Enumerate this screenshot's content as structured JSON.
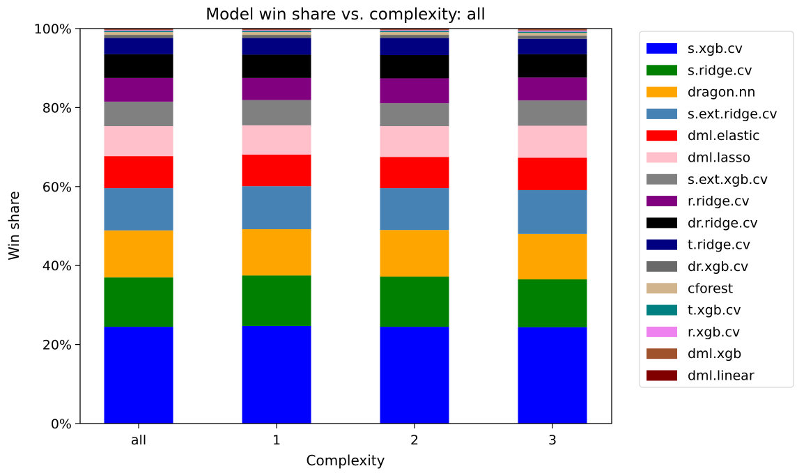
{
  "chart_data": {
    "type": "bar",
    "stacked": true,
    "title": "Model win share vs. complexity: all",
    "xlabel": "Complexity",
    "ylabel": "Win share",
    "ylim": [
      0,
      100
    ],
    "yticks": [
      "0%",
      "20%",
      "40%",
      "60%",
      "80%",
      "100%"
    ],
    "ytick_values": [
      0,
      20,
      40,
      60,
      80,
      100
    ],
    "categories": [
      "all",
      "1",
      "2",
      "3"
    ],
    "grid": false,
    "legend_placement": "outside-right",
    "series": [
      {
        "name": "s.xgb.cv",
        "color": "#0000ff",
        "values": [
          24.5,
          24.7,
          24.5,
          24.4
        ]
      },
      {
        "name": "s.ridge.cv",
        "color": "#008000",
        "values": [
          12.5,
          12.8,
          12.7,
          12.1
        ]
      },
      {
        "name": "dragon.nn",
        "color": "#ffa500",
        "values": [
          11.9,
          11.7,
          11.8,
          11.5
        ]
      },
      {
        "name": "s.ext.ridge.cv",
        "color": "#4682b4",
        "values": [
          10.7,
          10.9,
          10.6,
          11.1
        ]
      },
      {
        "name": "dml.elastic",
        "color": "#ff0000",
        "values": [
          8.1,
          8.0,
          7.9,
          8.2
        ]
      },
      {
        "name": "dml.lasso",
        "color": "#ffc0cb",
        "values": [
          7.6,
          7.4,
          7.8,
          8.1
        ]
      },
      {
        "name": "s.ext.xgb.cv",
        "color": "#808080",
        "values": [
          6.2,
          6.4,
          5.8,
          6.4
        ]
      },
      {
        "name": "r.ridge.cv",
        "color": "#800080",
        "values": [
          6.0,
          5.6,
          6.3,
          5.8
        ]
      },
      {
        "name": "dr.ridge.cv",
        "color": "#000000",
        "values": [
          6.0,
          5.9,
          5.9,
          5.9
        ]
      },
      {
        "name": "t.ridge.cv",
        "color": "#000080",
        "values": [
          4.1,
          4.2,
          4.3,
          3.9
        ]
      },
      {
        "name": "dr.xgb.cv",
        "color": "#696969",
        "values": [
          0.8,
          0.8,
          0.8,
          0.8
        ]
      },
      {
        "name": "cforest",
        "color": "#d2b48c",
        "values": [
          0.7,
          0.7,
          0.7,
          0.7
        ]
      },
      {
        "name": "t.xgb.cv",
        "color": "#008080",
        "values": [
          0.3,
          0.3,
          0.3,
          0.3
        ]
      },
      {
        "name": "r.xgb.cv",
        "color": "#ee82ee",
        "values": [
          0.2,
          0.2,
          0.2,
          0.3
        ]
      },
      {
        "name": "dml.xgb",
        "color": "#a0522d",
        "values": [
          0.2,
          0.2,
          0.2,
          0.3
        ]
      },
      {
        "name": "dml.linear",
        "color": "#800000",
        "values": [
          0.2,
          0.2,
          0.2,
          0.2
        ]
      }
    ]
  }
}
